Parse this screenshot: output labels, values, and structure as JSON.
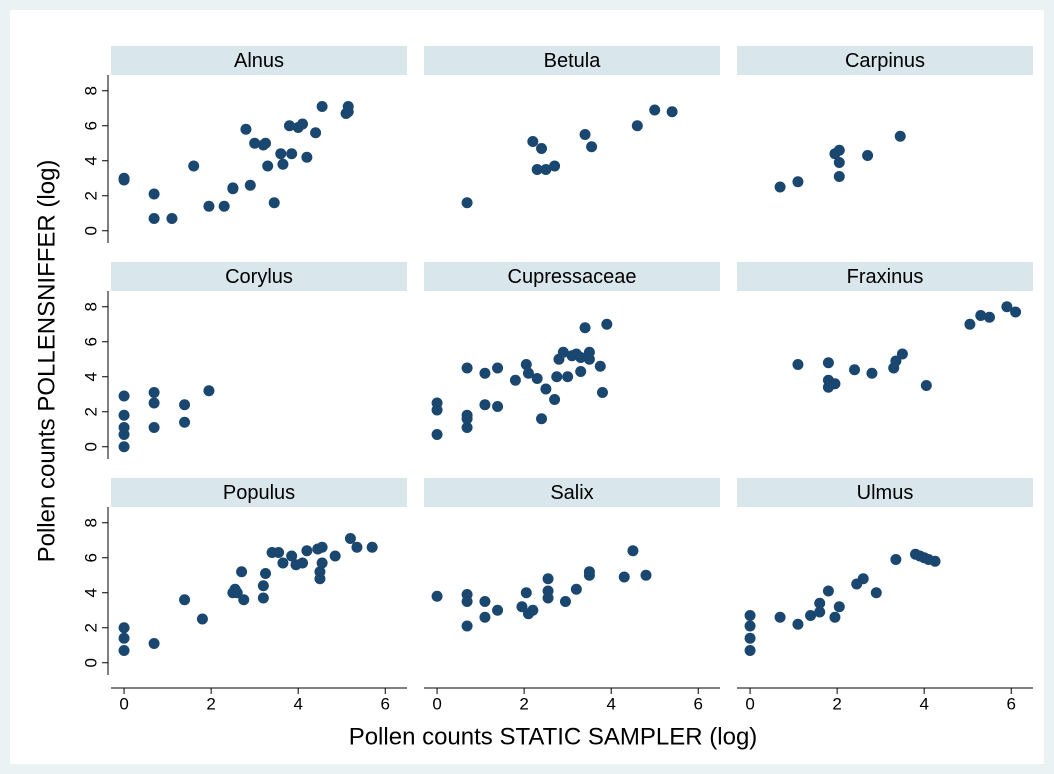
{
  "xlabel": "Pollen counts STATIC SAMPLER (log)",
  "ylabel": "Pollen counts POLLENSNIFFER (log)",
  "xlim": [
    -0.3,
    6.5
  ],
  "ylim": [
    -0.7,
    8.9
  ],
  "xticks": [
    0,
    2,
    4,
    6
  ],
  "yticks": [
    0,
    2,
    4,
    6,
    8
  ],
  "color": "#1a476f",
  "chart_data": [
    {
      "type": "scatter",
      "title": "Alnus",
      "x": [
        0,
        0,
        0.69,
        0.69,
        1.1,
        1.6,
        1.95,
        2.3,
        2.5,
        2.5,
        2.8,
        2.9,
        3.0,
        3.2,
        3.25,
        3.3,
        3.45,
        3.6,
        3.65,
        3.8,
        3.85,
        4.0,
        4.1,
        4.2,
        4.4,
        4.55,
        5.1,
        5.15,
        5.15
      ],
      "y": [
        2.9,
        3.0,
        2.1,
        0.7,
        0.7,
        3.7,
        1.4,
        1.4,
        2.4,
        2.45,
        5.8,
        2.6,
        5.0,
        4.9,
        5.0,
        3.7,
        1.6,
        4.4,
        3.8,
        6.0,
        4.4,
        5.9,
        6.1,
        4.2,
        5.6,
        7.1,
        6.7,
        7.1,
        6.8
      ]
    },
    {
      "type": "scatter",
      "title": "Betula",
      "x": [
        0.69,
        2.2,
        2.3,
        2.4,
        2.5,
        2.7,
        3.4,
        3.55,
        4.6,
        5.0,
        5.4
      ],
      "y": [
        1.6,
        5.1,
        3.5,
        4.7,
        3.5,
        3.7,
        5.5,
        4.8,
        6.0,
        6.9,
        6.8
      ]
    },
    {
      "type": "scatter",
      "title": "Carpinus",
      "x": [
        0.69,
        1.1,
        1.95,
        2.05,
        2.05,
        2.05,
        2.7,
        3.45
      ],
      "y": [
        2.5,
        2.8,
        4.4,
        4.6,
        3.9,
        3.1,
        4.3,
        5.4
      ]
    },
    {
      "type": "scatter",
      "title": "Corylus",
      "x": [
        0,
        0,
        0,
        0,
        0,
        0.69,
        0.69,
        0.69,
        1.39,
        1.39,
        1.95
      ],
      "y": [
        2.9,
        1.8,
        1.1,
        0.7,
        0,
        3.1,
        2.5,
        1.1,
        2.4,
        1.4,
        3.2
      ]
    },
    {
      "type": "scatter",
      "title": "Cupressaceae",
      "x": [
        0,
        0,
        0,
        0.69,
        0.69,
        0.69,
        0.69,
        1.1,
        1.1,
        1.39,
        1.39,
        1.8,
        2.05,
        2.1,
        2.3,
        2.4,
        2.5,
        2.7,
        2.75,
        2.8,
        2.9,
        3.0,
        3.1,
        3.2,
        3.3,
        3.3,
        3.4,
        3.5,
        3.5,
        3.75,
        3.8,
        3.9
      ],
      "y": [
        2.5,
        2.1,
        0.7,
        4.5,
        1.8,
        1.6,
        1.1,
        4.2,
        2.4,
        4.5,
        2.3,
        3.8,
        4.7,
        4.2,
        3.9,
        1.6,
        3.3,
        2.7,
        4.0,
        5.0,
        5.4,
        4.0,
        5.2,
        5.3,
        5.1,
        4.3,
        6.8,
        5.0,
        5.4,
        4.6,
        3.1,
        7.0
      ]
    },
    {
      "type": "scatter",
      "title": "Fraxinus",
      "x": [
        1.1,
        1.8,
        1.8,
        1.8,
        1.95,
        2.4,
        2.8,
        3.3,
        3.35,
        3.5,
        4.05,
        5.05,
        5.3,
        5.5,
        5.9,
        6.1
      ],
      "y": [
        4.7,
        4.8,
        3.8,
        3.4,
        3.6,
        4.4,
        4.2,
        4.5,
        4.9,
        5.3,
        3.5,
        7.0,
        7.5,
        7.4,
        8.0,
        7.7
      ]
    },
    {
      "type": "scatter",
      "title": "Populus",
      "x": [
        0,
        0,
        0,
        0.69,
        1.39,
        1.8,
        2.5,
        2.55,
        2.6,
        2.7,
        2.75,
        3.2,
        3.2,
        3.25,
        3.4,
        3.55,
        3.65,
        3.85,
        3.95,
        4.1,
        4.2,
        4.45,
        4.5,
        4.5,
        4.55,
        4.55,
        4.85,
        5.2,
        5.35,
        5.7
      ],
      "y": [
        2.0,
        1.4,
        0.7,
        1.1,
        3.6,
        2.5,
        4.0,
        4.2,
        4.0,
        5.2,
        3.6,
        3.7,
        4.4,
        5.1,
        6.3,
        6.3,
        5.7,
        6.1,
        5.6,
        5.7,
        6.4,
        6.5,
        4.8,
        5.2,
        5.7,
        6.6,
        6.1,
        7.1,
        6.6,
        6.6
      ]
    },
    {
      "type": "scatter",
      "title": "Salix",
      "x": [
        0,
        0.69,
        0.69,
        0.69,
        1.1,
        1.1,
        1.39,
        1.95,
        2.05,
        2.1,
        2.2,
        2.55,
        2.55,
        2.55,
        2.95,
        3.2,
        3.5,
        3.5,
        4.3,
        4.5,
        4.8
      ],
      "y": [
        3.8,
        3.9,
        3.5,
        2.1,
        3.5,
        2.6,
        3.0,
        3.2,
        4.0,
        2.8,
        3.0,
        4.8,
        4.1,
        3.7,
        3.5,
        4.2,
        5.0,
        5.2,
        4.9,
        6.4,
        5.0
      ]
    },
    {
      "type": "scatter",
      "title": "Ulmus",
      "x": [
        0,
        0,
        0,
        0,
        0.69,
        1.1,
        1.39,
        1.6,
        1.6,
        1.8,
        1.95,
        2.05,
        2.45,
        2.6,
        2.9,
        3.35,
        3.8,
        3.9,
        4.0,
        4.1,
        4.25
      ],
      "y": [
        2.7,
        2.1,
        1.4,
        0.7,
        2.6,
        2.2,
        2.7,
        3.4,
        2.9,
        4.1,
        2.6,
        3.2,
        4.5,
        4.8,
        4.0,
        5.9,
        6.2,
        6.1,
        6.0,
        5.9,
        5.8
      ]
    }
  ]
}
